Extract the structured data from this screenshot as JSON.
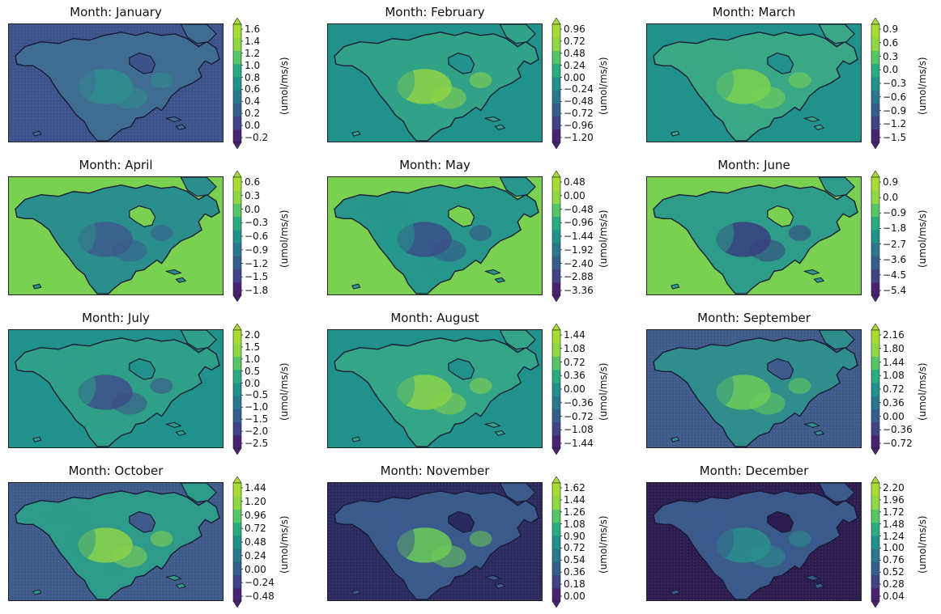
{
  "figure": {
    "colorbar_label": "(umol/ms/s)",
    "colormap": "viridis",
    "colors": {
      "ocean_jan": "#3b528b",
      "ocean_teal": "#21918c",
      "ocean_green": "#7ad151",
      "ocean_slate": "#3e5a8a",
      "ocean_dark": "#2b2a5e",
      "ocean_darkest": "#2c1b4f",
      "coastline": "#1a1a33"
    }
  },
  "panels": [
    {
      "title": "Month: January",
      "ticks": [
        "1.6",
        "1.4",
        "1.2",
        "1.0",
        "0.8",
        "0.6",
        "0.4",
        "0.2",
        "0.0",
        "−0.2"
      ],
      "ocean": "#3b528b",
      "land_base": "#3f6d91",
      "land_hi": "#2e8e8c",
      "bg_ocean_dots": true
    },
    {
      "title": "Month: February",
      "ticks": [
        "0.96",
        "0.72",
        "0.48",
        "0.24",
        "0.00",
        "−0.24",
        "−0.48",
        "−0.72",
        "−0.96",
        "−1.20"
      ],
      "ocean": "#21918c",
      "land_base": "#32a287",
      "land_hi": "#8fd545",
      "bg_ocean_dots": false
    },
    {
      "title": "Month: March",
      "ticks": [
        "0.9",
        "0.6",
        "0.3",
        "0.0",
        "−0.3",
        "−0.6",
        "−0.9",
        "−1.2",
        "−1.5"
      ],
      "ocean": "#21918c",
      "land_base": "#3aa884",
      "land_hi": "#7ad151",
      "bg_ocean_dots": false
    },
    {
      "title": "Month: April",
      "ticks": [
        "0.6",
        "0.3",
        "0.0",
        "−0.3",
        "−0.6",
        "−0.9",
        "−1.2",
        "−1.5",
        "−1.8"
      ],
      "ocean": "#7ad151",
      "land_base": "#2a8f8c",
      "land_hi": "#3d5a8c",
      "bg_ocean_dots": false
    },
    {
      "title": "Month: May",
      "ticks": [
        "0.48",
        "0.00",
        "−0.48",
        "−0.96",
        "−1.44",
        "−1.92",
        "−2.40",
        "−2.88",
        "−3.36"
      ],
      "ocean": "#7ad151",
      "land_base": "#27968b",
      "land_hi": "#3b4f88",
      "bg_ocean_dots": false
    },
    {
      "title": "Month: June",
      "ticks": [
        "0.9",
        "0.0",
        "−0.9",
        "−1.8",
        "−2.7",
        "−3.6",
        "−4.5",
        "−5.4"
      ],
      "ocean": "#7ad151",
      "land_base": "#2d9c89",
      "land_hi": "#3a3f80",
      "bg_ocean_dots": false
    },
    {
      "title": "Month: July",
      "ticks": [
        "2.0",
        "1.5",
        "1.0",
        "0.5",
        "0.0",
        "−0.5",
        "−1.0",
        "−1.5",
        "−2.0",
        "−2.5"
      ],
      "ocean": "#21918c",
      "land_base": "#2fa087",
      "land_hi": "#3c4d89",
      "bg_ocean_dots": false
    },
    {
      "title": "Month: August",
      "ticks": [
        "1.44",
        "1.08",
        "0.72",
        "0.36",
        "0.00",
        "−0.36",
        "−0.72",
        "−1.08",
        "−1.44"
      ],
      "ocean": "#21918c",
      "land_base": "#34a586",
      "land_hi": "#8bd449",
      "bg_ocean_dots": false
    },
    {
      "title": "Month: September",
      "ticks": [
        "2.16",
        "1.80",
        "1.44",
        "1.08",
        "0.72",
        "0.36",
        "0.00",
        "−0.36",
        "−0.72"
      ],
      "ocean": "#3e5a8a",
      "land_base": "#2f8e8c",
      "land_hi": "#6ccc58",
      "bg_ocean_dots": true
    },
    {
      "title": "Month: October",
      "ticks": [
        "1.44",
        "1.20",
        "0.96",
        "0.72",
        "0.48",
        "0.24",
        "0.00",
        "−0.24",
        "−0.48"
      ],
      "ocean": "#3e5a8a",
      "land_base": "#2e9a89",
      "land_hi": "#8bd449",
      "bg_ocean_dots": true
    },
    {
      "title": "Month: November",
      "ticks": [
        "1.62",
        "1.44",
        "1.26",
        "1.08",
        "0.90",
        "0.72",
        "0.54",
        "0.36",
        "0.18",
        "0.00"
      ],
      "ocean": "#2b2a5e",
      "land_base": "#3a5a8c",
      "land_hi": "#6ccc58",
      "bg_ocean_dots": true
    },
    {
      "title": "Month: December",
      "ticks": [
        "2.20",
        "1.96",
        "1.72",
        "1.48",
        "1.24",
        "1.00",
        "0.76",
        "0.52",
        "0.28",
        "0.04"
      ],
      "ocean": "#2c1b4f",
      "land_base": "#3a5a8c",
      "land_hi": "#2a8f8c",
      "bg_ocean_dots": true
    }
  ]
}
